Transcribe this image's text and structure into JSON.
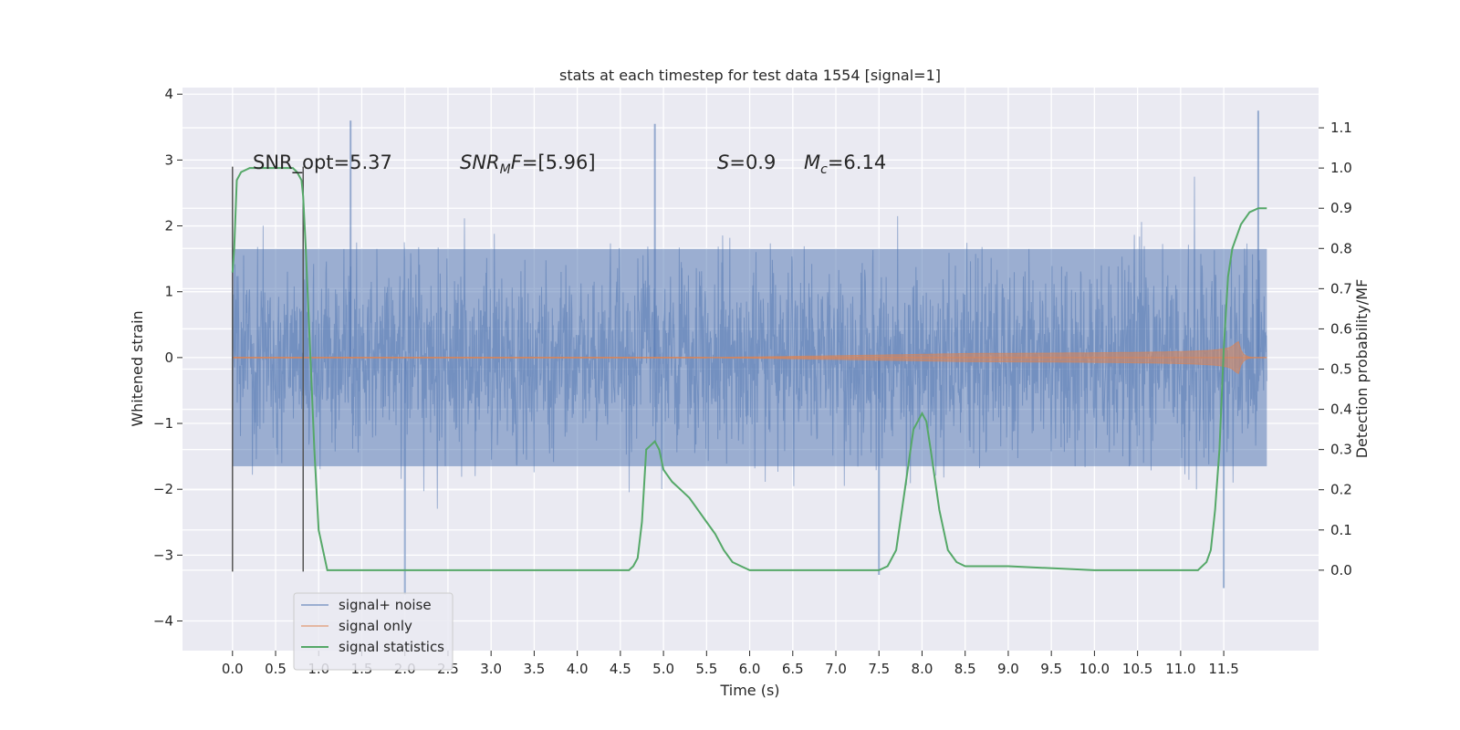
{
  "chart_data": {
    "type": "line",
    "title": "stats at each timestep for test data 1554 [signal=1]",
    "xlabel": "Time (s)",
    "ylabel_left": "Whitened strain",
    "ylabel_right": "Detection probability/MF",
    "xlim": [
      -0.58,
      12.6
    ],
    "ylim_left": [
      -4.45,
      4.1
    ],
    "ylim_right": [
      -0.2,
      1.2
    ],
    "x_ticks": [
      0.0,
      0.5,
      1.0,
      1.5,
      2.0,
      2.5,
      3.0,
      3.5,
      4.0,
      4.5,
      5.0,
      5.5,
      6.0,
      6.5,
      7.0,
      7.5,
      8.0,
      8.5,
      9.0,
      9.5,
      10.0,
      10.5,
      11.0,
      11.5
    ],
    "x_tick_labels": [
      "0.0",
      "0.5",
      "1.0",
      "1.5",
      "2.0",
      "2.5",
      "3.0",
      "3.5",
      "4.0",
      "4.5",
      "5.0",
      "5.5",
      "6.0",
      "6.5",
      "7.0",
      "7.5",
      "8.0",
      "8.5",
      "9.0",
      "9.5",
      "10.0",
      "10.5",
      "11.0",
      "11.5"
    ],
    "y_ticks_left": [
      -4,
      -3,
      -2,
      -1,
      0,
      1,
      2,
      3,
      4
    ],
    "y_tick_labels_left": [
      "−4",
      "−3",
      "−2",
      "−1",
      "0",
      "1",
      "2",
      "3",
      "4"
    ],
    "y_ticks_right": [
      0.0,
      0.1,
      0.2,
      0.3,
      0.4,
      0.5,
      0.6,
      0.7,
      0.8,
      0.9,
      1.0,
      1.1
    ],
    "y_tick_labels_right": [
      "0.0",
      "0.1",
      "0.2",
      "0.3",
      "0.4",
      "0.5",
      "0.6",
      "0.7",
      "0.8",
      "0.9",
      "1.0",
      "1.1"
    ],
    "grid": true,
    "legend_position": "lower-left",
    "annotations": {
      "snr_opt": "SNR_opt=5.37",
      "snr_mf_math": "SNR",
      "snr_mf_sub": "M",
      "snr_mf_math2": "F",
      "snr_mf_value": "=[5.96]",
      "s_math": "S",
      "s_value": "=0.9",
      "mc_math": "M",
      "mc_sub": "c",
      "mc_value": "=6.14"
    },
    "vertical_lines_x": [
      0.0,
      0.82
    ],
    "series": [
      {
        "name": "signal+ noise",
        "axis": "left",
        "color": "#4c72b0",
        "style": "noise",
        "x_range": [
          0.0,
          12.0
        ],
        "sigma": 0.75,
        "extremes": [
          [
            1.37,
            3.6
          ],
          [
            4.9,
            3.55
          ],
          [
            11.9,
            3.75
          ],
          [
            2.0,
            -3.6
          ],
          [
            11.5,
            -3.5
          ],
          [
            7.5,
            -3.3
          ]
        ]
      },
      {
        "name": "signal only",
        "axis": "left",
        "color": "#dd8452",
        "style": "chirp",
        "x_range": [
          0.0,
          12.0
        ],
        "amplitude_at_11_65": 0.4,
        "merger_time": 11.65
      },
      {
        "name": "signal statistics",
        "axis": "right",
        "color": "#55a868",
        "x": [
          0.0,
          0.02,
          0.05,
          0.1,
          0.2,
          0.4,
          0.6,
          0.7,
          0.75,
          0.8,
          0.82,
          0.85,
          0.9,
          0.95,
          1.0,
          1.1,
          1.5,
          2.0,
          3.0,
          4.0,
          4.5,
          4.6,
          4.65,
          4.7,
          4.75,
          4.8,
          4.85,
          4.9,
          4.95,
          5.0,
          5.1,
          5.2,
          5.3,
          5.4,
          5.5,
          5.6,
          5.7,
          5.8,
          5.9,
          6.0,
          6.5,
          7.0,
          7.4,
          7.5,
          7.6,
          7.7,
          7.8,
          7.9,
          7.95,
          8.0,
          8.05,
          8.1,
          8.2,
          8.3,
          8.4,
          8.5,
          8.6,
          9.0,
          10.0,
          11.0,
          11.2,
          11.3,
          11.35,
          11.4,
          11.45,
          11.5,
          11.55,
          11.6,
          11.7,
          11.8,
          11.9,
          12.0
        ],
        "y": [
          0.74,
          0.8,
          0.97,
          0.99,
          1.0,
          1.0,
          1.0,
          1.0,
          0.99,
          0.97,
          0.93,
          0.8,
          0.55,
          0.3,
          0.1,
          0.0,
          0.0,
          0.0,
          0.0,
          0.0,
          0.0,
          0.0,
          0.01,
          0.03,
          0.12,
          0.3,
          0.31,
          0.32,
          0.3,
          0.25,
          0.22,
          0.2,
          0.18,
          0.15,
          0.12,
          0.09,
          0.05,
          0.02,
          0.01,
          0.0,
          0.0,
          0.0,
          0.0,
          0.0,
          0.01,
          0.05,
          0.2,
          0.35,
          0.37,
          0.39,
          0.37,
          0.3,
          0.15,
          0.05,
          0.02,
          0.01,
          0.01,
          0.01,
          0.0,
          0.0,
          0.0,
          0.02,
          0.05,
          0.15,
          0.3,
          0.55,
          0.73,
          0.8,
          0.86,
          0.89,
          0.9,
          0.9
        ]
      }
    ]
  }
}
